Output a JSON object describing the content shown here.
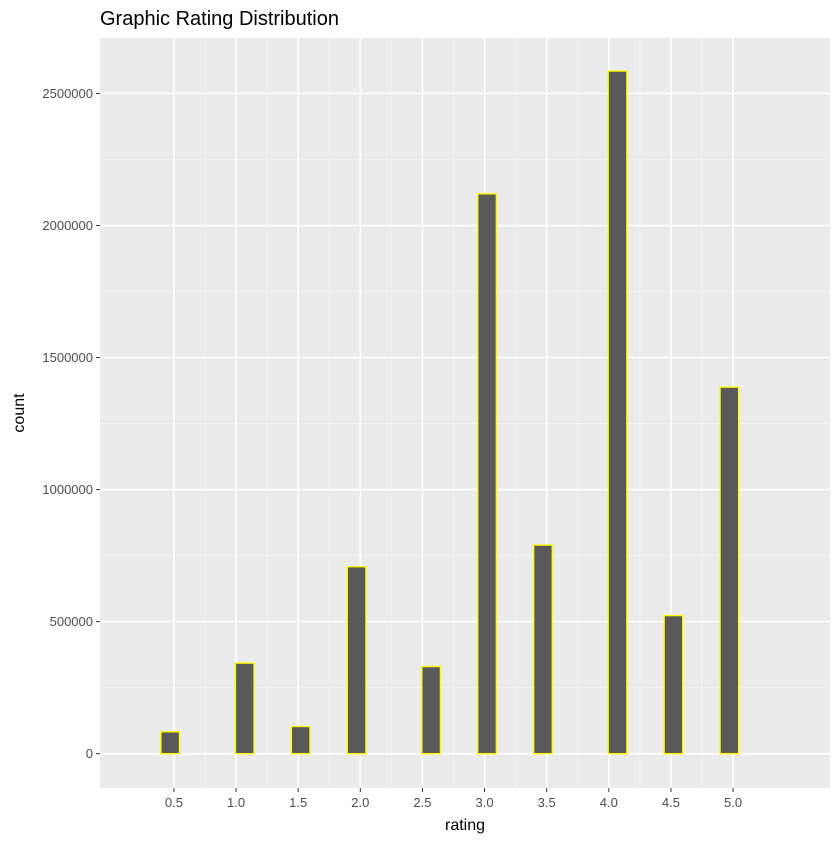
{
  "chart_data": {
    "type": "bar",
    "title": "Graphic Rating Distribution",
    "xlabel": "rating",
    "ylabel": "count",
    "x_ticks": [
      "0.5",
      "1.0",
      "1.5",
      "2.0",
      "2.5",
      "3.0",
      "3.5",
      "4.0",
      "4.5",
      "5.0"
    ],
    "y_ticks": [
      "0",
      "500000",
      "1000000",
      "1500000",
      "2000000",
      "2500000"
    ],
    "xlim": [
      -0.095,
      5.78
    ],
    "ylim": [
      -130000,
      2710000
    ],
    "bin_width": 0.15,
    "bins": [
      {
        "start": 0.395,
        "end": 0.545,
        "count": 83000
      },
      {
        "start": 0.545,
        "end": 0.695,
        "count": 0
      },
      {
        "start": 0.695,
        "end": 0.845,
        "count": 0
      },
      {
        "start": 0.845,
        "end": 0.995,
        "count": 0
      },
      {
        "start": 0.995,
        "end": 1.145,
        "count": 343000
      },
      {
        "start": 1.145,
        "end": 1.295,
        "count": 0
      },
      {
        "start": 1.295,
        "end": 1.445,
        "count": 0
      },
      {
        "start": 1.445,
        "end": 1.595,
        "count": 103000
      },
      {
        "start": 1.595,
        "end": 1.745,
        "count": 0
      },
      {
        "start": 1.745,
        "end": 1.895,
        "count": 0
      },
      {
        "start": 1.895,
        "end": 2.045,
        "count": 708000
      },
      {
        "start": 2.045,
        "end": 2.195,
        "count": 0
      },
      {
        "start": 2.195,
        "end": 2.345,
        "count": 0
      },
      {
        "start": 2.345,
        "end": 2.495,
        "count": 0
      },
      {
        "start": 2.495,
        "end": 2.645,
        "count": 330000
      },
      {
        "start": 2.645,
        "end": 2.795,
        "count": 0
      },
      {
        "start": 2.795,
        "end": 2.945,
        "count": 0
      },
      {
        "start": 2.945,
        "end": 3.095,
        "count": 2120000
      },
      {
        "start": 3.095,
        "end": 3.245,
        "count": 0
      },
      {
        "start": 3.245,
        "end": 3.395,
        "count": 0
      },
      {
        "start": 3.395,
        "end": 3.545,
        "count": 790000
      },
      {
        "start": 3.545,
        "end": 3.695,
        "count": 0
      },
      {
        "start": 3.695,
        "end": 3.845,
        "count": 0
      },
      {
        "start": 3.845,
        "end": 3.995,
        "count": 0
      },
      {
        "start": 3.995,
        "end": 4.145,
        "count": 2585000
      },
      {
        "start": 4.145,
        "end": 4.295,
        "count": 0
      },
      {
        "start": 4.295,
        "end": 4.445,
        "count": 0
      },
      {
        "start": 4.445,
        "end": 4.595,
        "count": 523000
      },
      {
        "start": 4.595,
        "end": 4.745,
        "count": 0
      },
      {
        "start": 4.745,
        "end": 4.895,
        "count": 0
      },
      {
        "start": 4.895,
        "end": 5.045,
        "count": 1388000
      }
    ],
    "grid": true,
    "colors": {
      "panel_background": "#ebebeb",
      "grid_major": "#ffffff",
      "grid_minor": "#f5f5f5",
      "bar_fill": "#595959",
      "bar_outline": "#ffff00",
      "tick_text": "#4d4d4d",
      "text": "#000000"
    }
  }
}
